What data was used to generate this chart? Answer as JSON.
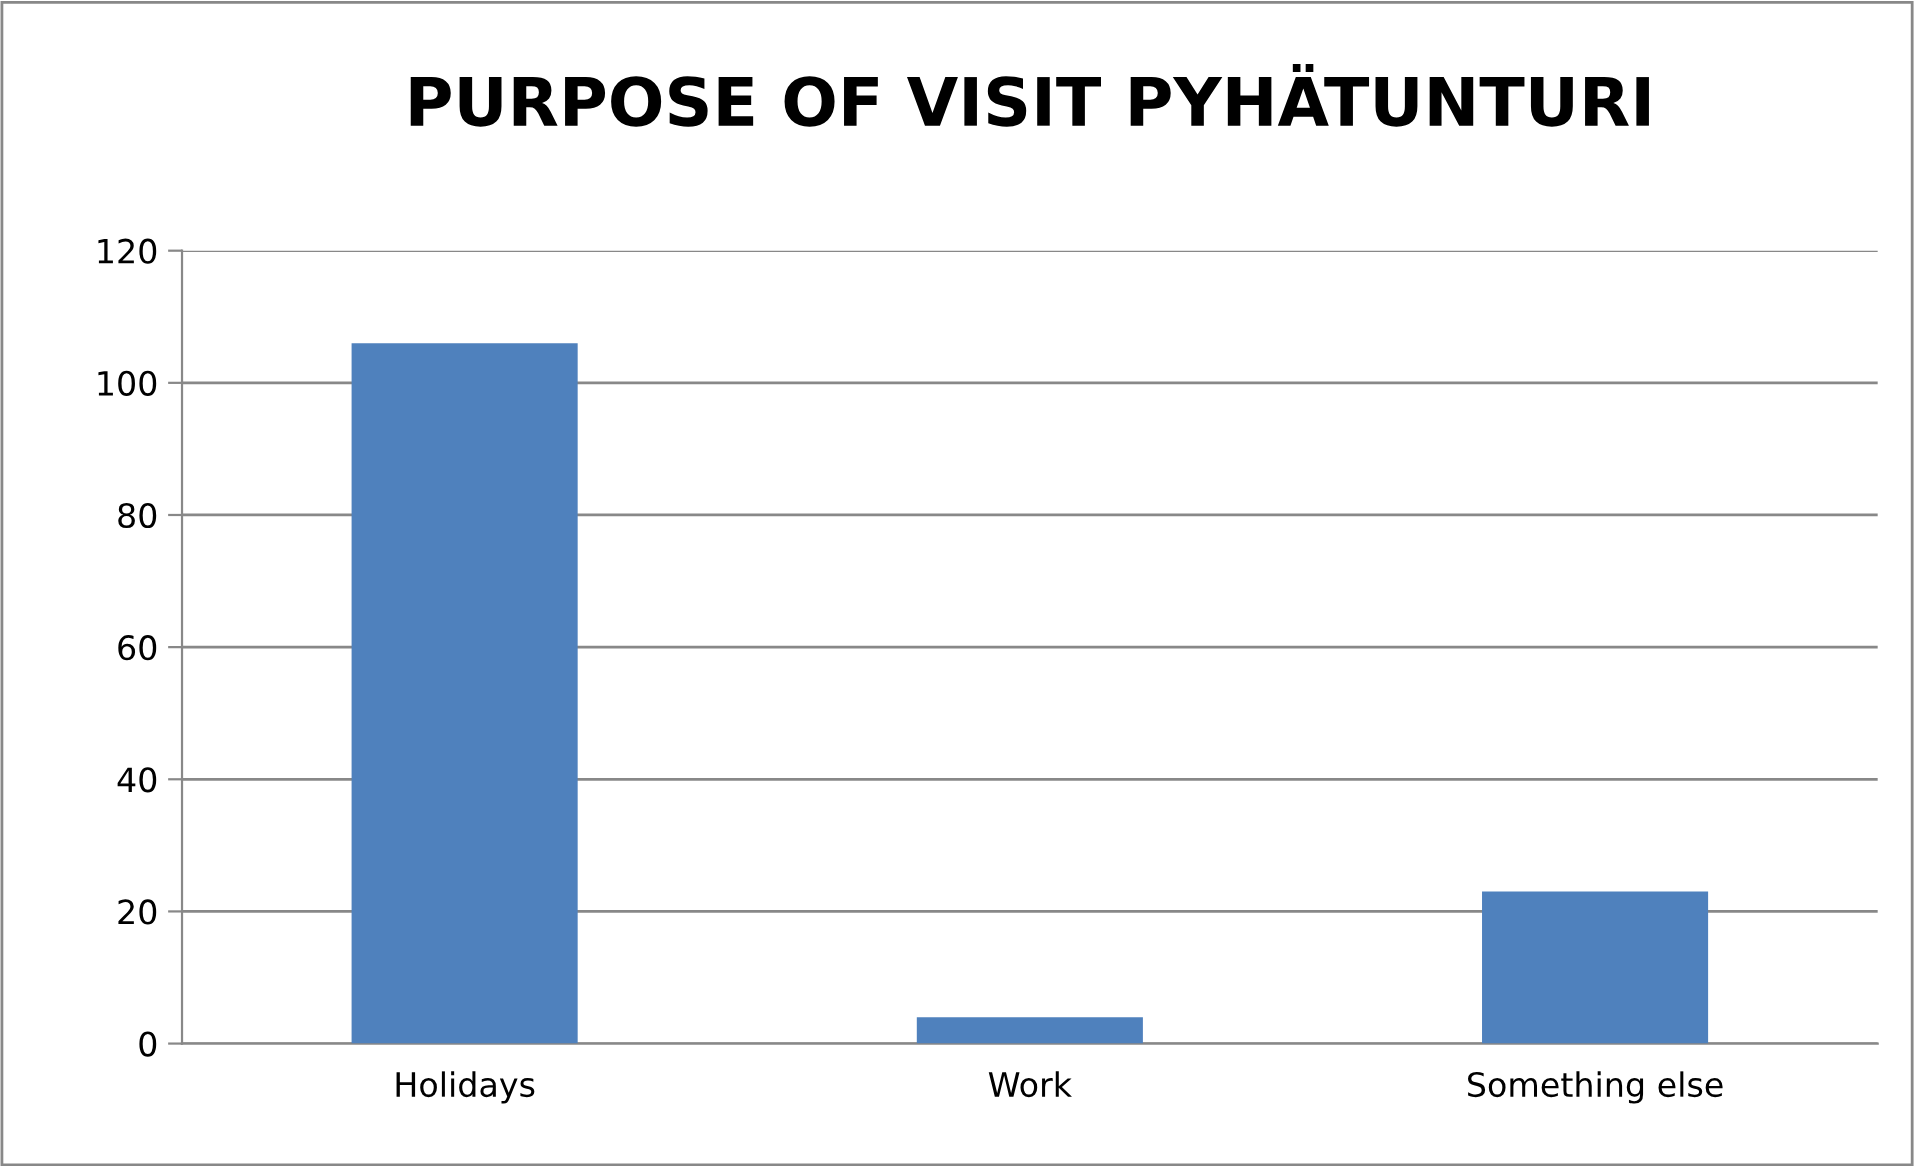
{
  "chart_data": {
    "type": "bar",
    "title": "PURPOSE OF VISIT PYHÄTUNTURI",
    "categories": [
      "Holidays",
      "Work",
      "Something else"
    ],
    "values": [
      106,
      4,
      23
    ],
    "color": "#4f81bd",
    "ylim": [
      0,
      120
    ],
    "yticks": [
      0,
      20,
      40,
      60,
      80,
      100,
      120
    ],
    "grid": "y"
  }
}
